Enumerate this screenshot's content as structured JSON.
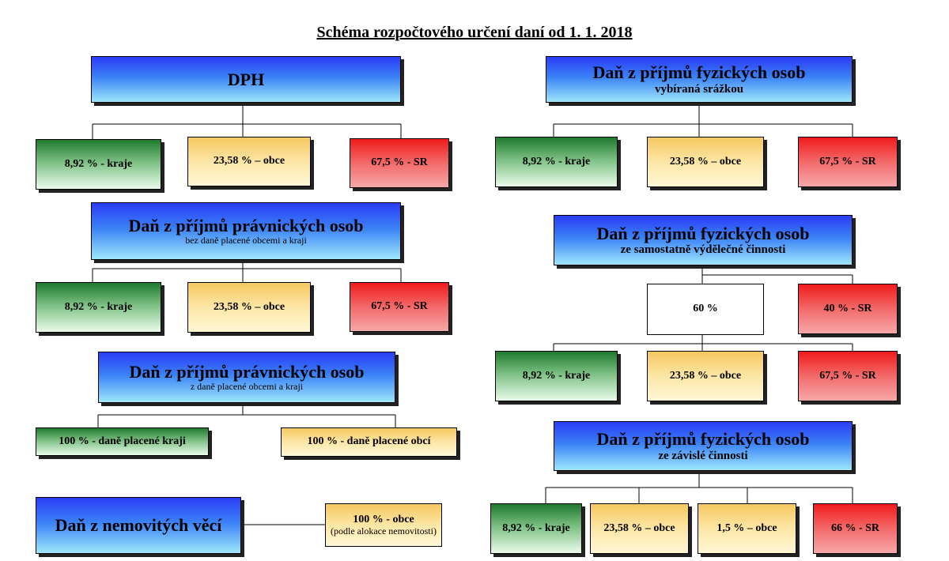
{
  "title": "Schéma rozpočtového určení daní od 1. 1. 2018",
  "colors": {
    "head": "#3a82f6",
    "green": "#7cbf83",
    "yellow": "#fce6a6",
    "red": "#f36a6a"
  },
  "dph": {
    "title": "DPH",
    "kraje": "8,92 % - kraje",
    "obce": "23,58 % – obce",
    "sr": "67,5 % - SR"
  },
  "dppo_bez": {
    "title": "Daň z příjmů právnických osob",
    "sub": "bez daně placené obcemi a kraji",
    "kraje": "8,92 % - kraje",
    "obce": "23,58 % – obce",
    "sr": "67,5 % - SR"
  },
  "dppo_z": {
    "title": "Daň z příjmů právnických osob",
    "sub": "z daně placené obcemi a kraji",
    "kraje": "100 % - daně placené kraji",
    "obce": "100 % - daně placené obcí"
  },
  "nemovitosti": {
    "title": "Daň z nemovitých věcí",
    "obce": "100 % - obce",
    "obce_note": "(podle alokace nemovitosti)"
  },
  "dpfo_srazka": {
    "title": "Daň z příjmů fyzických osob",
    "sub": "vybíraná srážkou",
    "kraje": "8,92 % - kraje",
    "obce": "23,58 % – obce",
    "sr": "67,5 % - SR"
  },
  "dpfo_osvc": {
    "title": "Daň z příjmů fyzických osob",
    "sub": "ze samostatně výdělečné činnosti",
    "share60": "60 %",
    "sr40": "40 % - SR",
    "kraje": "8,92 % - kraje",
    "obce": "23,58 % – obce",
    "sr": "67,5 % - SR"
  },
  "dpfo_zc": {
    "title": "Daň z příjmů fyzických osob",
    "sub": "ze závislé činnosti",
    "kraje": "8,92 % - kraje",
    "obce": "23,58 % – obce",
    "obce15": "1,5 % – obce",
    "sr": "66 % - SR"
  }
}
